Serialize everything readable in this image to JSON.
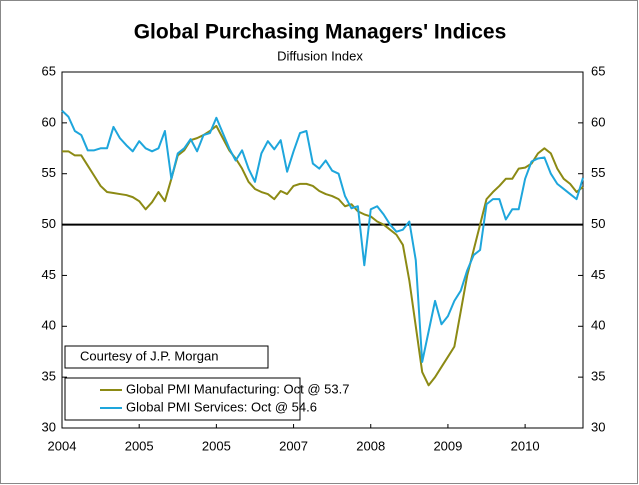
{
  "chart_data": {
    "type": "line",
    "title": "Global Purchasing Managers' Indices",
    "subtitle": "Diffusion Index",
    "annotation": "Courtesy of J.P. Morgan",
    "categories": [
      "2004",
      null,
      null,
      null,
      null,
      null,
      null,
      null,
      null,
      null,
      null,
      null,
      "2005",
      null,
      null,
      null,
      null,
      null,
      null,
      null,
      null,
      null,
      null,
      null,
      "2005",
      null,
      null,
      null,
      null,
      null,
      null,
      null,
      null,
      null,
      null,
      null,
      "2007",
      null,
      null,
      null,
      null,
      null,
      null,
      null,
      null,
      null,
      null,
      null,
      "2008",
      null,
      null,
      null,
      null,
      null,
      null,
      null,
      null,
      null,
      null,
      null,
      "2009",
      null,
      null,
      null,
      null,
      null,
      null,
      null,
      null,
      null,
      null,
      null,
      "2010",
      null,
      null,
      null,
      null,
      null,
      null,
      null,
      null,
      null
    ],
    "series": [
      {
        "name": "Global PMI Manufacturing: Oct @ 53.7",
        "color": "#8c8a14",
        "values": [
          57.2,
          57.2,
          56.8,
          56.8,
          55.8,
          54.8,
          53.8,
          53.2,
          53.1,
          53.0,
          52.9,
          52.7,
          52.3,
          51.5,
          52.2,
          53.2,
          52.3,
          54.5,
          56.8,
          57.3,
          58.3,
          58.5,
          58.8,
          59.2,
          59.7,
          58.5,
          57.3,
          56.5,
          55.5,
          54.2,
          53.5,
          53.2,
          53.0,
          52.5,
          53.3,
          53.0,
          53.8,
          54.0,
          54.0,
          53.8,
          53.3,
          53.0,
          52.8,
          52.5,
          51.8,
          52.0,
          51.3,
          51.0,
          50.8,
          50.3,
          50.0,
          49.5,
          49.0,
          48.0,
          44.5,
          40.0,
          35.5,
          34.2,
          35.0,
          36.0,
          37.0,
          38.0,
          41.5,
          45.0,
          47.5,
          50.0,
          52.5,
          53.2,
          53.8,
          54.5,
          54.5,
          55.5,
          55.6,
          56.0,
          57.0,
          57.5,
          57.0,
          55.5,
          54.5,
          54.0,
          53.2,
          53.7
        ]
      },
      {
        "name": "Global PMI Services: Oct @ 54.6",
        "color": "#1ea6dc",
        "values": [
          61.2,
          60.6,
          59.2,
          58.8,
          57.3,
          57.3,
          57.5,
          57.5,
          59.6,
          58.5,
          57.8,
          57.2,
          58.2,
          57.5,
          57.2,
          57.5,
          59.2,
          54.5,
          57.0,
          57.5,
          58.4,
          57.2,
          58.8,
          59.0,
          60.5,
          59.0,
          57.5,
          56.3,
          57.3,
          55.5,
          54.2,
          57.0,
          58.2,
          57.4,
          58.3,
          55.2,
          57.2,
          59.0,
          59.2,
          56.0,
          55.5,
          56.3,
          55.3,
          55.0,
          52.8,
          51.6,
          51.8,
          46.0,
          51.5,
          51.8,
          51.0,
          50.0,
          49.3,
          49.5,
          50.3,
          46.5,
          36.5,
          39.5,
          42.5,
          40.2,
          41.0,
          42.5,
          43.5,
          45.5,
          47.0,
          47.5,
          52.0,
          52.5,
          52.5,
          50.5,
          51.5,
          51.5,
          54.5,
          56.2,
          56.5,
          56.6,
          55.0,
          54.0,
          53.5,
          53.0,
          52.5,
          54.6
        ]
      }
    ],
    "ylim": [
      30,
      65
    ],
    "yticks": [
      30,
      35,
      40,
      45,
      50,
      55,
      60,
      65
    ],
    "reference_line": 50,
    "grid": false
  }
}
